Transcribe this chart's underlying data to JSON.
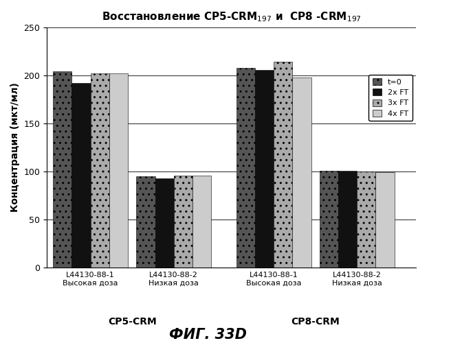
{
  "title_main": "Восстановление CP5-CRM",
  "title_sub1": "197",
  "title_mid": " и  CP8 -CRM",
  "title_sub2": "197",
  "ylabel": "Концентрация (мкт/мл)",
  "categories": [
    "L44130-88-1\nВысокая доза",
    "L44130-88-2\nНизкая доза",
    "L44130-88-1\nВысокая доза",
    "L44130-88-2\nНизкая доза"
  ],
  "series_labels": [
    "t=0",
    "2x FT",
    "3x FT",
    "4x FT"
  ],
  "data": [
    [
      204,
      192,
      202,
      202
    ],
    [
      95,
      93,
      96,
      96
    ],
    [
      208,
      206,
      214,
      198
    ],
    [
      101,
      101,
      100,
      99
    ]
  ],
  "ylim": [
    0,
    250
  ],
  "yticks": [
    0,
    50,
    100,
    150,
    200,
    250
  ],
  "bar_width": 0.18,
  "figure_title": "ФИГ. 33D",
  "group_labels": [
    "CP5-CRM",
    "CP8-CRM"
  ],
  "background_color": "#ffffff",
  "color_t0": "#555555",
  "color_2xFT": "#111111",
  "color_3xFT": "#aaaaaa",
  "color_4xFT": "#cccccc"
}
